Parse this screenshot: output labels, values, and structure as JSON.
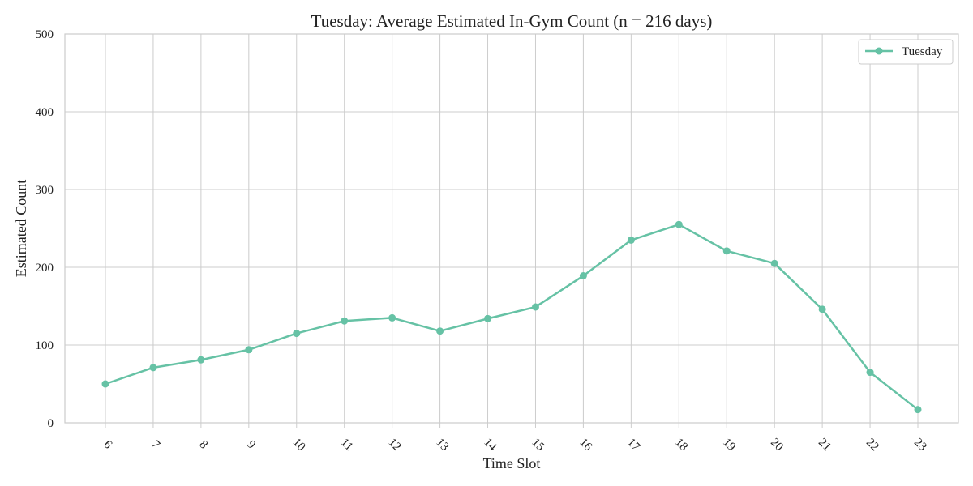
{
  "chart_data": {
    "type": "line",
    "title": "Tuesday: Average Estimated In-Gym Count (n = 216 days)",
    "xlabel": "Time Slot",
    "ylabel": "Estimated Count",
    "x": [
      6,
      7,
      8,
      9,
      10,
      11,
      12,
      13,
      14,
      15,
      16,
      17,
      18,
      19,
      20,
      21,
      22,
      23
    ],
    "x_tick_labels": [
      "6",
      "7",
      "8",
      "9",
      "10",
      "11",
      "12",
      "13",
      "14",
      "15",
      "16",
      "17",
      "18",
      "19",
      "20",
      "21",
      "22",
      "23"
    ],
    "y_ticks": [
      0,
      100,
      200,
      300,
      400,
      500
    ],
    "y_tick_labels": [
      "0",
      "100",
      "200",
      "300",
      "400",
      "500"
    ],
    "ylim": [
      0,
      500
    ],
    "grid": true,
    "legend_position": "top-right",
    "series": [
      {
        "name": "Tuesday",
        "color": "#66c2a5",
        "marker": "circle",
        "values": [
          50,
          71,
          81,
          94,
          115,
          131,
          135,
          118,
          134,
          149,
          189,
          235,
          255,
          221,
          205,
          146,
          65,
          17
        ]
      }
    ],
    "colors": {
      "grid": "#cccccc",
      "axis": "#cccccc",
      "text": "#222222",
      "background": "#ffffff"
    }
  }
}
